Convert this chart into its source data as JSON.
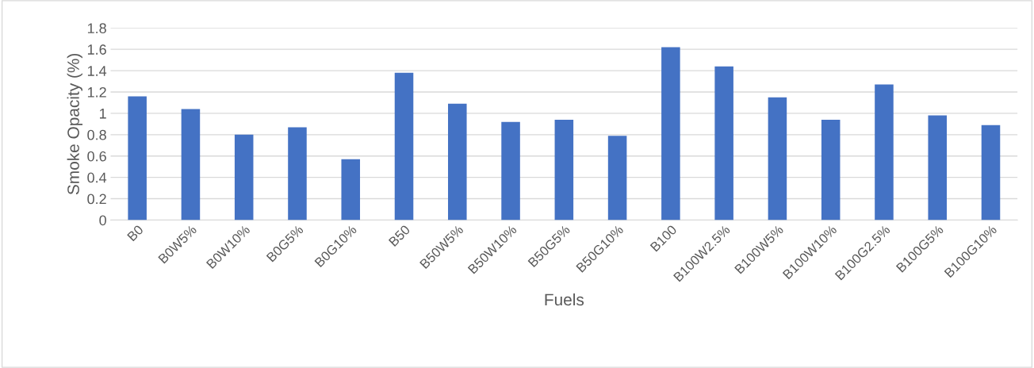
{
  "chart_data": {
    "type": "bar",
    "xlabel": "Fuels",
    "ylabel": "Smoke Opacity (%)",
    "categories": [
      "B0",
      "B0W5%",
      "B0W10%",
      "B0G5%",
      "B0G10%",
      "B50",
      "B50W5%",
      "B50W10%",
      "B50G5%",
      "B50G10%",
      "B100",
      "B100W2.5%",
      "B100W5%",
      "B100W10%",
      "B100G2.5%",
      "B100G5%",
      "B100G10%"
    ],
    "values": [
      1.16,
      1.04,
      0.8,
      0.87,
      0.57,
      1.38,
      1.09,
      0.92,
      0.94,
      0.79,
      1.62,
      1.44,
      1.15,
      0.94,
      1.27,
      0.98,
      0.89
    ],
    "color": "#4472c4",
    "ylim": [
      0,
      1.8
    ],
    "yticks": [
      0,
      0.2,
      0.4,
      0.6,
      0.8,
      1,
      1.2,
      1.4,
      1.6,
      1.8
    ],
    "grid": "y",
    "legend": false
  }
}
